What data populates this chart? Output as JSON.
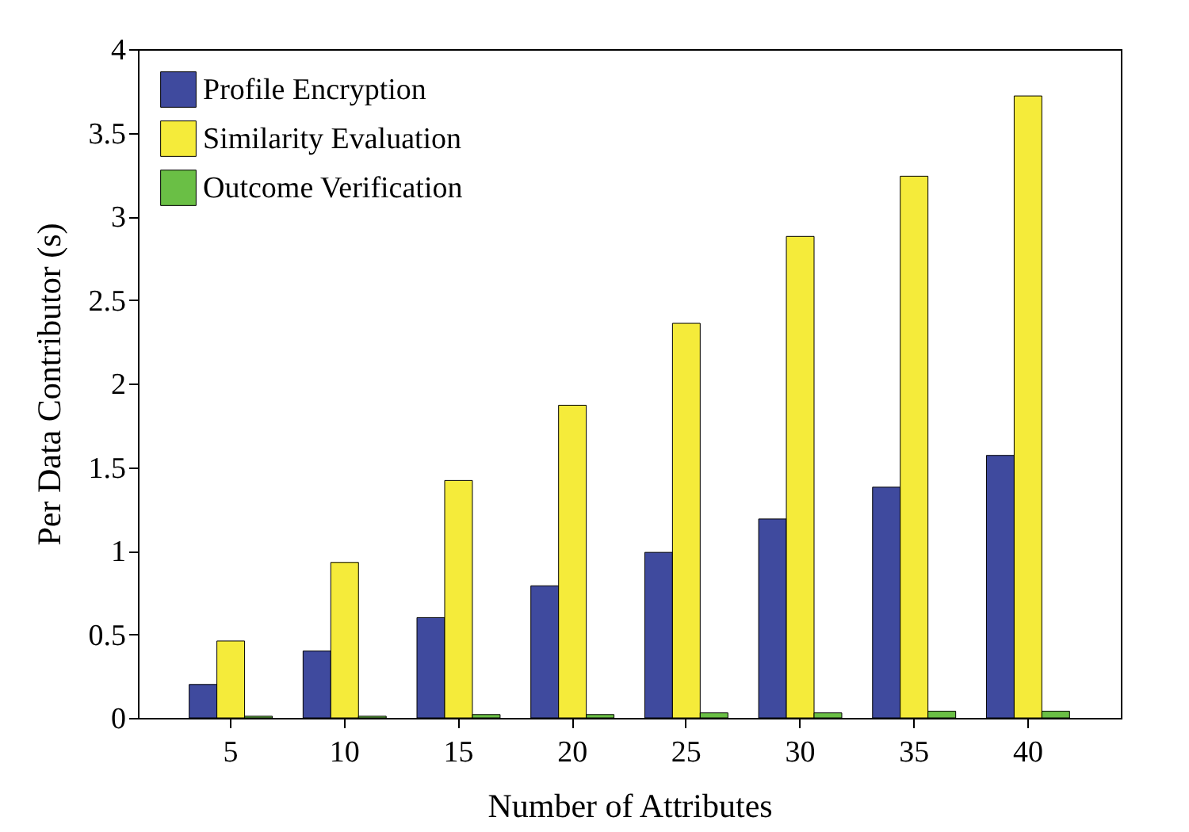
{
  "chart_data": {
    "type": "bar",
    "xlabel": "Number of Attributes",
    "ylabel": "Per Data Contributor (s)",
    "categories": [
      "5",
      "10",
      "15",
      "20",
      "25",
      "30",
      "35",
      "40"
    ],
    "series": [
      {
        "name": "Profile Encryption",
        "color": "#3f4a9e",
        "values": [
          0.2,
          0.4,
          0.6,
          0.79,
          0.99,
          1.19,
          1.38,
          1.57
        ]
      },
      {
        "name": "Similarity Evaluation",
        "color": "#f5eb3a",
        "values": [
          0.46,
          0.93,
          1.42,
          1.87,
          2.36,
          2.88,
          3.24,
          3.72
        ]
      },
      {
        "name": "Outcome Verification",
        "color": "#6abf45",
        "values": [
          0.01,
          0.01,
          0.02,
          0.02,
          0.03,
          0.03,
          0.04,
          0.04
        ]
      }
    ],
    "ylim": [
      0,
      4
    ],
    "yticks": [
      0,
      0.5,
      1,
      1.5,
      2,
      2.5,
      3,
      3.5,
      4
    ],
    "grid": false,
    "legend": "top left"
  }
}
